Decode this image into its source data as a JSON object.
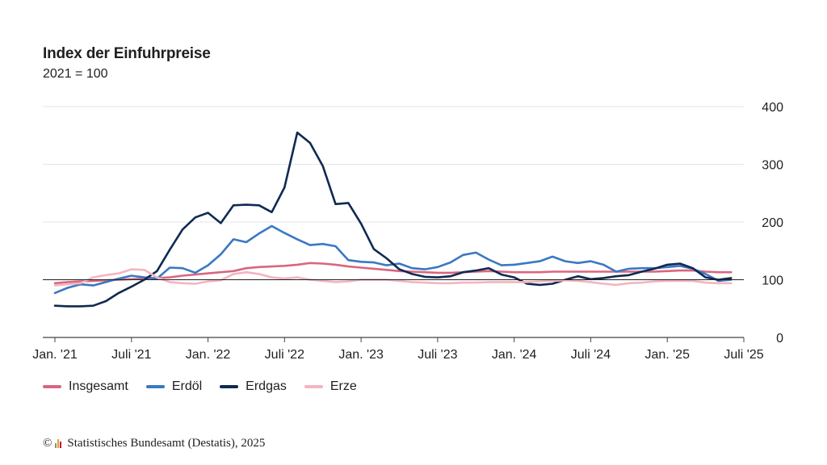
{
  "chart_data": {
    "type": "line",
    "title": "Index der Einfuhrpreise",
    "subtitle": "2021 = 100",
    "xlabel": "",
    "ylabel": "",
    "ylim": [
      0,
      400
    ],
    "yticks": [
      "0",
      "100",
      "200",
      "300",
      "400"
    ],
    "y_axis_position": "right",
    "grid": "horizontal",
    "legend_position": "bottom-left",
    "x_start": "2021-01",
    "x_end": "2025-07",
    "xtick_labels": [
      {
        "label": "Jan. '21",
        "month": "2021-01"
      },
      {
        "label": "Juli '21",
        "month": "2021-07"
      },
      {
        "label": "Jan. '22",
        "month": "2022-01"
      },
      {
        "label": "Juli '22",
        "month": "2022-07"
      },
      {
        "label": "Jan. '23",
        "month": "2023-01"
      },
      {
        "label": "Juli '23",
        "month": "2023-07"
      },
      {
        "label": "Jan. '24",
        "month": "2024-01"
      },
      {
        "label": "Juli '24",
        "month": "2024-07"
      },
      {
        "label": "Jan. '25",
        "month": "2025-01"
      },
      {
        "label": "Juli '25",
        "month": "2025-07"
      }
    ],
    "x": [
      "2021-01",
      "2021-02",
      "2021-03",
      "2021-04",
      "2021-05",
      "2021-06",
      "2021-07",
      "2021-08",
      "2021-09",
      "2021-10",
      "2021-11",
      "2021-12",
      "2022-01",
      "2022-02",
      "2022-03",
      "2022-04",
      "2022-05",
      "2022-06",
      "2022-07",
      "2022-08",
      "2022-09",
      "2022-10",
      "2022-11",
      "2022-12",
      "2023-01",
      "2023-02",
      "2023-03",
      "2023-04",
      "2023-05",
      "2023-06",
      "2023-07",
      "2023-08",
      "2023-09",
      "2023-10",
      "2023-11",
      "2023-12",
      "2024-01",
      "2024-02",
      "2024-03",
      "2024-04",
      "2024-05",
      "2024-06",
      "2024-07",
      "2024-08",
      "2024-09",
      "2024-10",
      "2024-11",
      "2024-12",
      "2025-01",
      "2025-02",
      "2025-03",
      "2025-04",
      "2025-05",
      "2025-06"
    ],
    "series": [
      {
        "name": "Insgesamt",
        "color": "#d9667f",
        "values": [
          94,
          96,
          97,
          98,
          99,
          100,
          101,
          102,
          103,
          104,
          107,
          109,
          111,
          113,
          115,
          120,
          122,
          123,
          124,
          126,
          129,
          128,
          126,
          123,
          121,
          119,
          117,
          115,
          114,
          113,
          112,
          112,
          113,
          114,
          115,
          114,
          113,
          113,
          113,
          114,
          114,
          114,
          114,
          114,
          114,
          114,
          114,
          114,
          115,
          116,
          116,
          114,
          113,
          113
        ]
      },
      {
        "name": "Erdöl",
        "color": "#3a78c3",
        "values": [
          77,
          86,
          92,
          90,
          96,
          102,
          107,
          104,
          102,
          121,
          120,
          112,
          125,
          144,
          170,
          165,
          180,
          193,
          181,
          170,
          160,
          162,
          158,
          134,
          131,
          130,
          125,
          128,
          120,
          118,
          122,
          130,
          143,
          147,
          135,
          125,
          126,
          129,
          132,
          140,
          132,
          129,
          132,
          126,
          114,
          119,
          120,
          120,
          122,
          124,
          119,
          110,
          98,
          100
        ]
      },
      {
        "name": "Erdgas",
        "color": "#0f2a52",
        "values": [
          55,
          54,
          54,
          55,
          63,
          77,
          88,
          100,
          115,
          152,
          187,
          208,
          216,
          198,
          229,
          230,
          229,
          217,
          260,
          355,
          337,
          297,
          231,
          233,
          197,
          153,
          137,
          118,
          110,
          105,
          104,
          106,
          113,
          116,
          120,
          109,
          104,
          93,
          91,
          93,
          100,
          106,
          101,
          103,
          106,
          108,
          114,
          119,
          126,
          128,
          120,
          104,
          100,
          103
        ]
      },
      {
        "name": "Erze",
        "color": "#f4b4c1",
        "values": [
          90,
          92,
          94,
          104,
          108,
          111,
          118,
          117,
          104,
          96,
          94,
          93,
          97,
          99,
          110,
          113,
          110,
          104,
          102,
          104,
          100,
          98,
          96,
          97,
          100,
          100,
          100,
          98,
          96,
          95,
          94,
          94,
          95,
          95,
          96,
          96,
          96,
          96,
          97,
          98,
          99,
          98,
          96,
          93,
          91,
          94,
          95,
          97,
          98,
          98,
          98,
          95,
          94,
          94
        ]
      }
    ]
  },
  "source": {
    "copyright": "©",
    "text": "Statistisches Bundesamt (Destatis), 2025",
    "logo_colors": [
      "#8c8c8c",
      "#e3a21a",
      "#c8102e"
    ]
  }
}
